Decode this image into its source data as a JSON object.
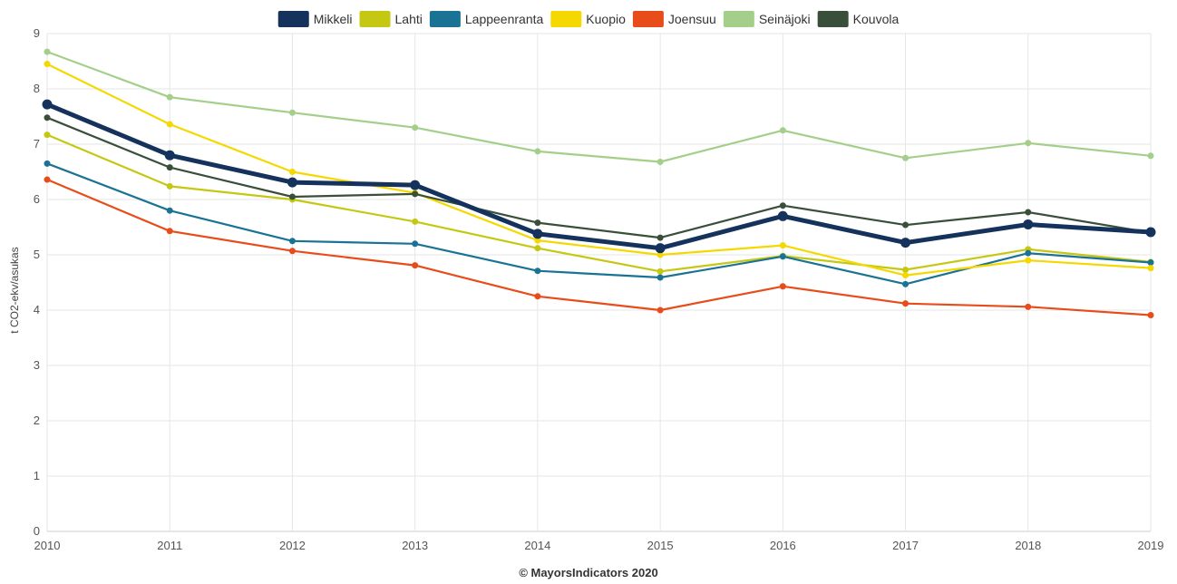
{
  "chart_data": {
    "type": "line",
    "ylabel": "t CO2-ekv/asukas",
    "credit": "© MayorsIndicators 2020",
    "x": [
      "2010",
      "2011",
      "2012",
      "2013",
      "2014",
      "2015",
      "2016",
      "2017",
      "2018",
      "2019"
    ],
    "ylim": [
      0,
      9
    ],
    "yticks": [
      0,
      1,
      2,
      3,
      4,
      5,
      6,
      7,
      8,
      9
    ],
    "grid": true,
    "legend_position": "top",
    "series": [
      {
        "name": "Mikkeli",
        "color": "#14325c",
        "emphasis": true,
        "values": [
          7.72,
          6.8,
          6.31,
          6.26,
          5.38,
          5.12,
          5.7,
          5.22,
          5.55,
          5.41
        ]
      },
      {
        "name": "Lahti",
        "color": "#c5c812",
        "values": [
          7.17,
          6.24,
          6.0,
          5.6,
          5.12,
          4.7,
          4.98,
          4.73,
          5.1,
          4.87
        ]
      },
      {
        "name": "Lappeenranta",
        "color": "#1a7394",
        "values": [
          6.65,
          5.8,
          5.25,
          5.2,
          4.71,
          4.59,
          4.97,
          4.47,
          5.03,
          4.86
        ]
      },
      {
        "name": "Kuopio",
        "color": "#f5d800",
        "values": [
          8.45,
          7.36,
          6.5,
          6.12,
          5.26,
          5.0,
          5.17,
          4.63,
          4.9,
          4.76
        ]
      },
      {
        "name": "Joensuu",
        "color": "#e84c1a",
        "values": [
          6.36,
          5.43,
          5.07,
          4.81,
          4.25,
          4.0,
          4.43,
          4.12,
          4.06,
          3.91
        ]
      },
      {
        "name": "Seinäjoki",
        "color": "#a3cf8a",
        "values": [
          8.67,
          7.85,
          7.57,
          7.3,
          6.87,
          6.68,
          7.25,
          6.75,
          7.02,
          6.79
        ]
      },
      {
        "name": "Kouvola",
        "color": "#3a4f3a",
        "values": [
          7.48,
          6.58,
          6.05,
          6.1,
          5.58,
          5.31,
          5.89,
          5.54,
          5.77,
          5.4
        ]
      }
    ]
  }
}
